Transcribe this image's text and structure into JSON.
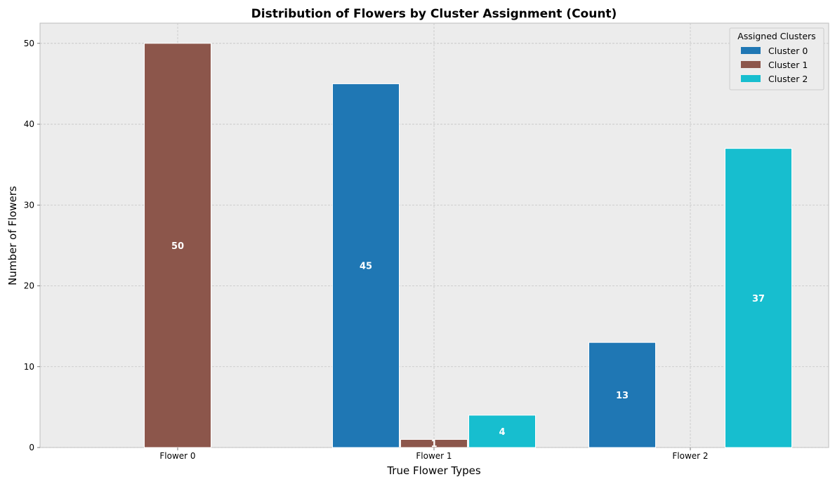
{
  "chart_data": {
    "type": "bar",
    "title": "Distribution of Flowers by Cluster Assignment (Count)",
    "xlabel": "True Flower Types",
    "ylabel": "Number of Flowers",
    "categories": [
      "Flower 0",
      "Flower 1",
      "Flower 2"
    ],
    "series": [
      {
        "name": "Cluster 0",
        "values": [
          0,
          45,
          13
        ],
        "color": "#1f77b4"
      },
      {
        "name": "Cluster 1",
        "values": [
          50,
          1,
          0
        ],
        "color": "#8c564b"
      },
      {
        "name": "Cluster 2",
        "values": [
          0,
          4,
          37
        ],
        "color": "#17becf"
      }
    ],
    "ylim": [
      0,
      52.5
    ],
    "yticks": [
      0,
      10,
      20,
      30,
      40,
      50
    ],
    "legend_title": "Assigned Clusters",
    "legend_position": "top-right",
    "grid": true,
    "background_color": "#ececec"
  }
}
